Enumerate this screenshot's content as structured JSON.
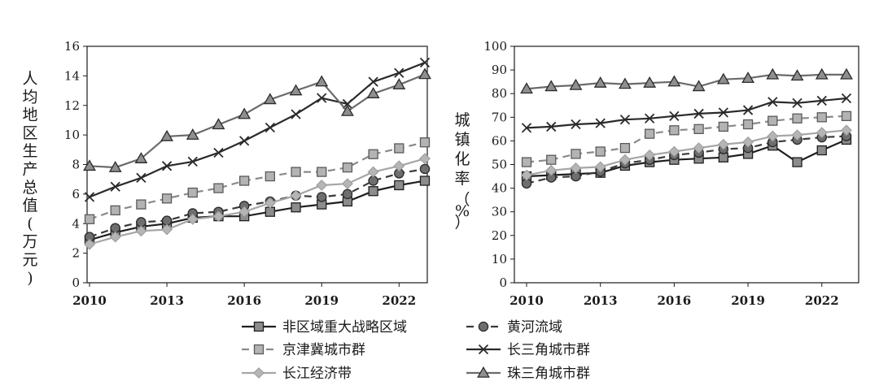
{
  "chart_data": [
    {
      "type": "line",
      "ylabel": "人均地区生产总值(万元)",
      "xlabel": "",
      "x": [
        2010,
        2011,
        2012,
        2013,
        2014,
        2015,
        2016,
        2017,
        2018,
        2019,
        2020,
        2021,
        2022,
        2023
      ],
      "xticks": [
        2010,
        2013,
        2016,
        2019,
        2022
      ],
      "ylim": [
        0,
        16
      ],
      "yticks": [
        0,
        2,
        4,
        6,
        8,
        10,
        12,
        14,
        16
      ],
      "grid": false,
      "series": [
        {
          "name": "非区域重大战略区域",
          "values": [
            2.9,
            3.4,
            3.8,
            4.0,
            4.4,
            4.5,
            4.5,
            4.8,
            5.1,
            5.3,
            5.5,
            6.2,
            6.6,
            6.9
          ]
        },
        {
          "name": "黄河流域",
          "values": [
            3.1,
            3.7,
            4.1,
            4.2,
            4.7,
            4.8,
            5.2,
            5.5,
            5.9,
            5.8,
            6.0,
            6.9,
            7.4,
            7.7
          ]
        },
        {
          "name": "京津冀城市群",
          "values": [
            4.3,
            4.9,
            5.3,
            5.7,
            6.1,
            6.4,
            6.9,
            7.2,
            7.5,
            7.5,
            7.8,
            8.7,
            9.1,
            9.5
          ]
        },
        {
          "name": "长三角城市群",
          "values": [
            5.8,
            6.5,
            7.1,
            7.9,
            8.2,
            8.8,
            9.6,
            10.5,
            11.4,
            12.5,
            12.1,
            13.6,
            14.2,
            14.9
          ]
        },
        {
          "name": "长江经济带",
          "values": [
            2.6,
            3.1,
            3.5,
            3.6,
            4.3,
            4.5,
            4.8,
            5.4,
            5.9,
            6.6,
            6.7,
            7.5,
            7.9,
            8.4
          ]
        },
        {
          "name": "珠三角城市群",
          "values": [
            7.9,
            7.8,
            8.4,
            9.9,
            10.0,
            10.7,
            11.4,
            12.4,
            13.0,
            13.6,
            11.6,
            12.8,
            13.4,
            14.1
          ]
        }
      ]
    },
    {
      "type": "line",
      "ylabel": "城镇化率",
      "ylabel_unit": "（%）",
      "xlabel": "",
      "x": [
        2010,
        2011,
        2012,
        2013,
        2014,
        2015,
        2016,
        2017,
        2018,
        2019,
        2020,
        2021,
        2022,
        2023
      ],
      "xticks": [
        2010,
        2013,
        2016,
        2019,
        2022
      ],
      "ylim": [
        0,
        100
      ],
      "yticks": [
        0,
        10,
        20,
        30,
        40,
        50,
        60,
        70,
        80,
        90,
        100
      ],
      "grid": false,
      "series": [
        {
          "name": "非区域重大战略区域",
          "values": [
            45,
            45.5,
            46,
            46.5,
            49.5,
            51,
            52,
            52.5,
            53,
            54.5,
            58,
            51,
            56,
            60.5
          ]
        },
        {
          "name": "黄河流域",
          "values": [
            42,
            44.5,
            45,
            47,
            50.5,
            52,
            54,
            55,
            56.5,
            57,
            59.5,
            60.5,
            61.5,
            62
          ]
        },
        {
          "name": "京津冀城市群",
          "values": [
            51,
            52,
            54.5,
            55.5,
            57,
            63,
            64.5,
            65,
            66,
            67,
            68.5,
            69.5,
            70,
            70.5
          ]
        },
        {
          "name": "长三角城市群",
          "values": [
            65.5,
            66,
            67,
            67.5,
            69,
            69.5,
            70.5,
            71.5,
            72,
            73,
            76.5,
            76,
            77,
            78
          ]
        },
        {
          "name": "长江经济带",
          "values": [
            45.5,
            47.5,
            48.5,
            49,
            52,
            54,
            55.5,
            57,
            58.5,
            59.5,
            62,
            62.5,
            63.5,
            64.5
          ]
        },
        {
          "name": "珠三角城市群",
          "values": [
            82,
            83,
            83.5,
            84.5,
            84,
            84.5,
            85,
            83,
            86,
            86.5,
            88,
            87.5,
            88,
            88
          ]
        }
      ]
    }
  ],
  "series_styles": [
    {
      "color": "#1f1f1f",
      "dash": "",
      "marker": "square",
      "marker_fill": "#8c8c8c",
      "marker_stroke": "#1f1f1f"
    },
    {
      "color": "#3a3a3a",
      "dash": "9,6",
      "marker": "circle",
      "marker_fill": "#6e6e6e",
      "marker_stroke": "#2a2a2a"
    },
    {
      "color": "#8a8a8a",
      "dash": "9,6",
      "marker": "square",
      "marker_fill": "#b3b3b3",
      "marker_stroke": "#5a5a5a"
    },
    {
      "color": "#2a2a2a",
      "dash": "",
      "marker": "x",
      "marker_fill": "none",
      "marker_stroke": "#2a2a2a"
    },
    {
      "color": "#a6a6a6",
      "dash": "",
      "marker": "diamond",
      "marker_fill": "#b5b5b5",
      "marker_stroke": "#9a9a9a"
    },
    {
      "color": "#6b6b6b",
      "dash": "",
      "marker": "triangle",
      "marker_fill": "#8f8f8f",
      "marker_stroke": "#2a2a2a"
    }
  ],
  "legend": {
    "placement": "bottom",
    "items": [
      "非区域重大战略区域",
      "黄河流域",
      "京津冀城市群",
      "长三角城市群",
      "长江经济带",
      "珠三角城市群"
    ]
  }
}
